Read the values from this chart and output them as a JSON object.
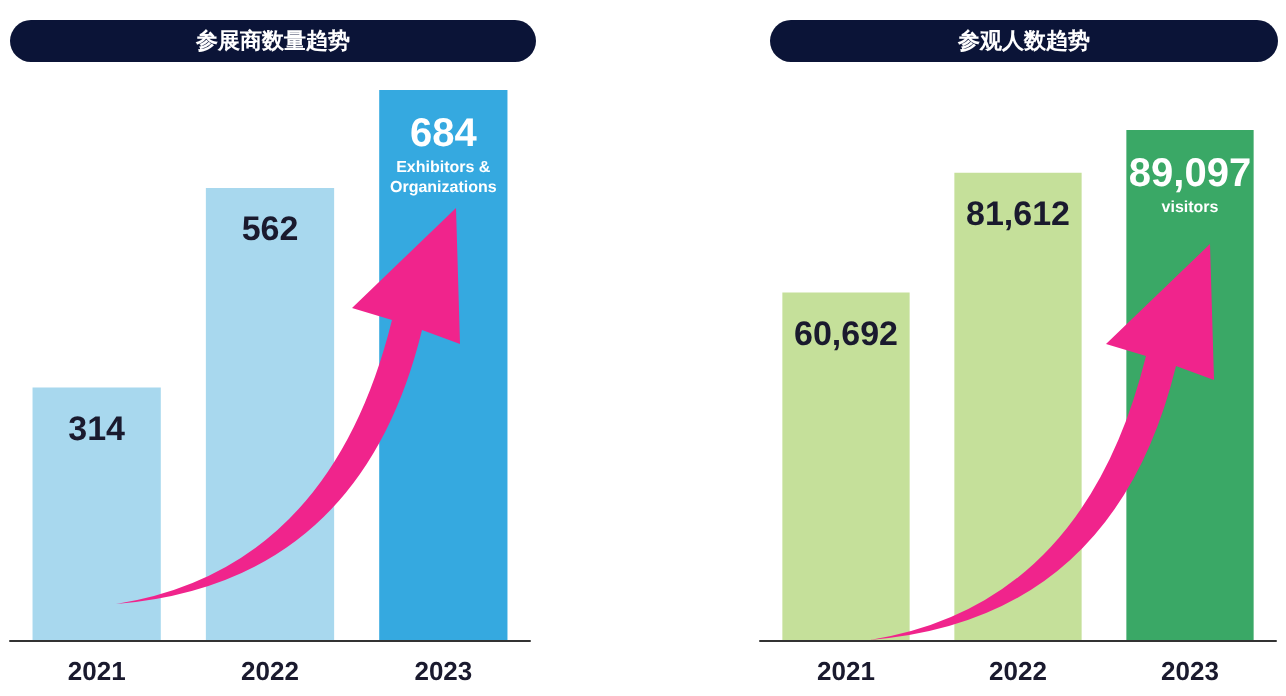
{
  "chart_data": [
    {
      "type": "bar",
      "title": "参展商数量趋势",
      "categories": [
        "2021",
        "2022",
        "2023"
      ],
      "values": [
        314,
        562,
        684
      ],
      "colors": [
        "#a8d8ee",
        "#a8d8ee",
        "#35a9e0"
      ],
      "data_labels": true,
      "annotations": [
        "Exhibitors & Organizations"
      ]
    },
    {
      "type": "bar",
      "title": "参观人数趋势",
      "categories": [
        "2021",
        "2022",
        "2023"
      ],
      "values": [
        60692,
        81612,
        89097
      ],
      "colors": [
        "#c5e09a",
        "#c5e09a",
        "#3aa866"
      ],
      "value_labels": [
        "60,692",
        "81,612",
        "89,097"
      ],
      "annotations": [
        "visitors"
      ]
    }
  ]
}
